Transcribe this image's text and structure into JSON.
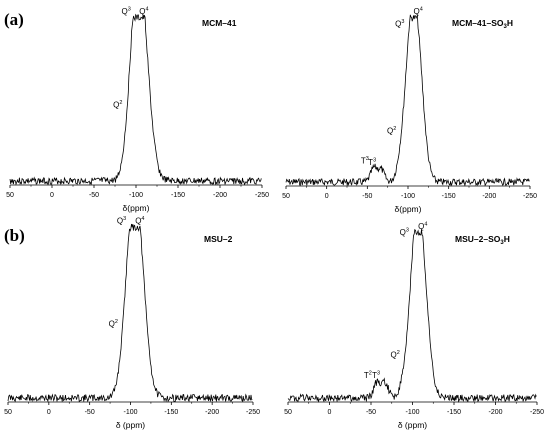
{
  "panel_labels": [
    "(a)",
    "(b)"
  ],
  "chart_data": [
    {
      "type": "line",
      "title": "MCM–41",
      "xlabel": "δ(ppm)",
      "xlim": [
        50,
        -250
      ],
      "xticks": [
        50,
        0,
        -50,
        -100,
        -150,
        -200,
        -250
      ],
      "xticklabels": [
        "50",
        "0",
        "-50",
        "-100",
        "-150",
        "-200",
        "-250"
      ],
      "y_relative_max": 1.0,
      "peaks": [
        {
          "label": "Q",
          "sup": "4",
          "x": -107,
          "y": 1.0,
          "width": 9
        },
        {
          "label": "Q",
          "sup": "3",
          "x": -99,
          "y": 0.62,
          "width": 7
        },
        {
          "label": "Q",
          "sup": "2",
          "x": -89,
          "y": 0.1,
          "width": 6
        }
      ],
      "noise_seed": 3
    },
    {
      "type": "line",
      "title": "MCM–41–SO",
      "title_sub": "3",
      "title_tail": "H",
      "xlabel": "δ(ppm)",
      "xlim": [
        50,
        -250
      ],
      "xticks": [
        50,
        0,
        -50,
        -100,
        -150,
        -200,
        -250
      ],
      "xticklabels": [
        "50",
        "0",
        "-50",
        "-100",
        "-150",
        "-200",
        "-250"
      ],
      "y_relative_max": 1.0,
      "peaks": [
        {
          "label": "Q",
          "sup": "4",
          "x": -110,
          "y": 1.0,
          "width": 8
        },
        {
          "label": "Q",
          "sup": "3",
          "x": -101,
          "y": 0.45,
          "width": 6
        },
        {
          "label": "Q",
          "sup": "2",
          "x": -91,
          "y": 0.12,
          "width": 5
        },
        {
          "label": "T",
          "sup": "3",
          "x": -67,
          "y": 0.08,
          "width": 4
        },
        {
          "label": "T",
          "sup": "3",
          "x": -58,
          "y": 0.09,
          "width": 4
        }
      ],
      "noise_seed": 7
    },
    {
      "type": "line",
      "title": "MSU–2",
      "xlabel": "δ (ppm)",
      "xlim": [
        50,
        -250
      ],
      "xticks": [
        50,
        0,
        -50,
        -100,
        -150,
        -200,
        -250
      ],
      "xticklabels": [
        "50",
        "0",
        "-50",
        "-100",
        "-150",
        "-200",
        "-250"
      ],
      "y_relative_max": 1.0,
      "peaks": [
        {
          "label": "Q",
          "sup": "4",
          "x": -109,
          "y": 1.0,
          "width": 9
        },
        {
          "label": "Q",
          "sup": "3",
          "x": -100,
          "y": 0.55,
          "width": 7
        },
        {
          "label": "Q",
          "sup": "2",
          "x": -90,
          "y": 0.12,
          "width": 6
        }
      ],
      "noise_seed": 11
    },
    {
      "type": "line",
      "title": "MSU–2–SO",
      "title_sub": "3",
      "title_tail": "H",
      "xlabel": "δ (ppm)",
      "xlim": [
        50,
        -250
      ],
      "xticks": [
        50,
        0,
        -50,
        -100,
        -150,
        -200,
        -250
      ],
      "xticklabels": [
        "50",
        "0",
        "-50",
        "-100",
        "-150",
        "-200",
        "-250"
      ],
      "y_relative_max": 1.0,
      "peaks": [
        {
          "label": "Q",
          "sup": "4",
          "x": -110,
          "y": 1.0,
          "width": 8
        },
        {
          "label": "Q",
          "sup": "3",
          "x": -101,
          "y": 0.5,
          "width": 6
        },
        {
          "label": "Q",
          "sup": "2",
          "x": -90,
          "y": 0.1,
          "width": 5
        },
        {
          "label": "T",
          "sup": "3",
          "x": -67,
          "y": 0.1,
          "width": 4
        },
        {
          "label": "T",
          "sup": "2",
          "x": -57,
          "y": 0.1,
          "width": 4
        }
      ],
      "noise_seed": 19
    }
  ]
}
